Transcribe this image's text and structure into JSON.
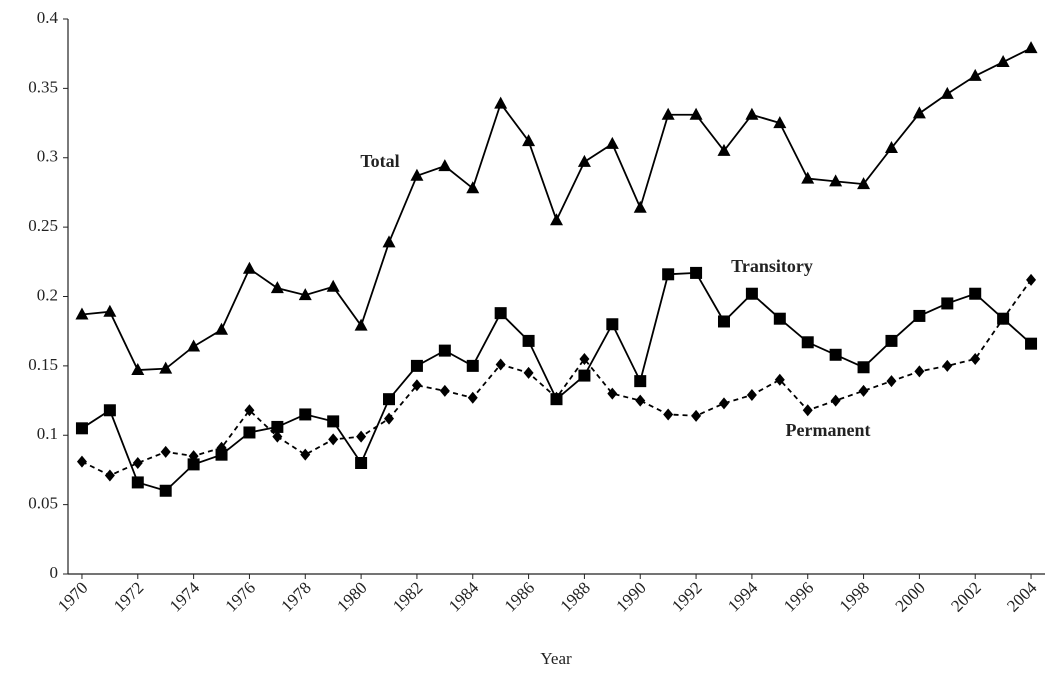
{
  "chart_data": {
    "type": "line",
    "x_label": "Year",
    "x": [
      1970,
      1971,
      1972,
      1973,
      1974,
      1975,
      1976,
      1977,
      1978,
      1979,
      1980,
      1981,
      1982,
      1983,
      1984,
      1985,
      1986,
      1987,
      1988,
      1989,
      1990,
      1991,
      1992,
      1993,
      1994,
      1995,
      1996,
      1997,
      1998,
      1999,
      2000,
      2001,
      2002,
      2003,
      2004
    ],
    "xlim": [
      1969.5,
      2004.5
    ],
    "xticks": [
      1970,
      1972,
      1974,
      1976,
      1978,
      1980,
      1982,
      1984,
      1986,
      1988,
      1990,
      1992,
      1994,
      1996,
      1998,
      2000,
      2002,
      2004
    ],
    "ylim": [
      0,
      0.4
    ],
    "yticks": [
      0,
      0.05,
      0.1,
      0.15,
      0.2,
      0.25,
      0.3,
      0.35,
      0.4
    ],
    "grid": false,
    "series": [
      {
        "name": "Total",
        "color": "#000000",
        "marker": "triangle",
        "dashed": false,
        "values": [
          0.187,
          0.189,
          0.147,
          0.148,
          0.164,
          0.176,
          0.22,
          0.206,
          0.201,
          0.207,
          0.179,
          0.239,
          0.287,
          0.294,
          0.278,
          0.339,
          0.312,
          0.255,
          0.297,
          0.31,
          0.264,
          0.331,
          0.331,
          0.305,
          0.331,
          0.325,
          0.285,
          0.283,
          0.281,
          0.307,
          0.332,
          0.346,
          0.359,
          0.369,
          0.379
        ]
      },
      {
        "name": "Transitory",
        "color": "#000000",
        "marker": "square",
        "dashed": false,
        "values": [
          0.105,
          0.118,
          0.066,
          0.06,
          0.079,
          0.086,
          0.102,
          0.106,
          0.115,
          0.11,
          0.08,
          0.126,
          0.15,
          0.161,
          0.15,
          0.188,
          0.168,
          0.126,
          0.143,
          0.18,
          0.139,
          0.216,
          0.217,
          0.182,
          0.202,
          0.184,
          0.167,
          0.158,
          0.149,
          0.168,
          0.186,
          0.195,
          0.202,
          0.184,
          0.166
        ]
      },
      {
        "name": "Permanent",
        "color": "#000000",
        "marker": "diamond",
        "dashed": true,
        "values": [
          0.081,
          0.071,
          0.08,
          0.088,
          0.085,
          0.091,
          0.118,
          0.099,
          0.086,
          0.097,
          0.099,
          0.112,
          0.136,
          0.132,
          0.127,
          0.151,
          0.145,
          0.127,
          0.155,
          0.13,
          0.125,
          0.115,
          0.114,
          0.123,
          0.129,
          0.14,
          0.118,
          0.125,
          0.132,
          0.139,
          0.146,
          0.15,
          0.155,
          0.184,
          0.212
        ]
      }
    ]
  }
}
